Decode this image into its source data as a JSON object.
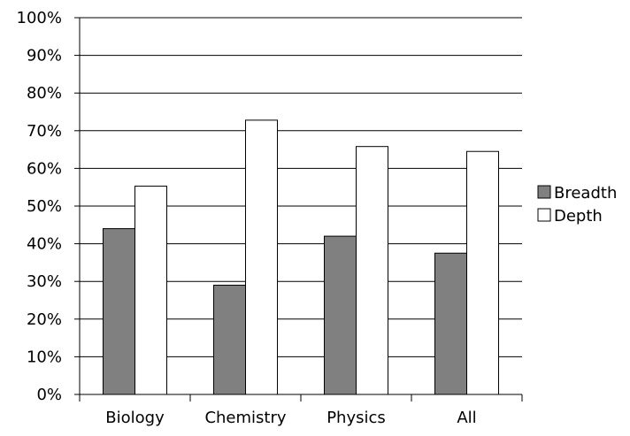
{
  "chart_data": {
    "type": "bar",
    "categories": [
      "Biology",
      "Chemistry",
      "Physics",
      "All"
    ],
    "series": [
      {
        "name": "Breadth",
        "values": [
          44,
          29,
          42,
          37.5
        ],
        "color": "#808080"
      },
      {
        "name": "Depth",
        "values": [
          55.3,
          72.8,
          65.8,
          64.5
        ],
        "color": "#ffffff"
      }
    ],
    "ylim": [
      0,
      100
    ],
    "y_ticks": [
      0,
      10,
      20,
      30,
      40,
      50,
      60,
      70,
      80,
      90,
      100
    ],
    "y_tick_labels": [
      "0%",
      "10%",
      "20%",
      "30%",
      "40%",
      "50%",
      "60%",
      "70%",
      "80%",
      "90%",
      "100%"
    ],
    "grid": "horizontal",
    "legend_position": "right",
    "title": "",
    "xlabel": "",
    "ylabel": ""
  }
}
